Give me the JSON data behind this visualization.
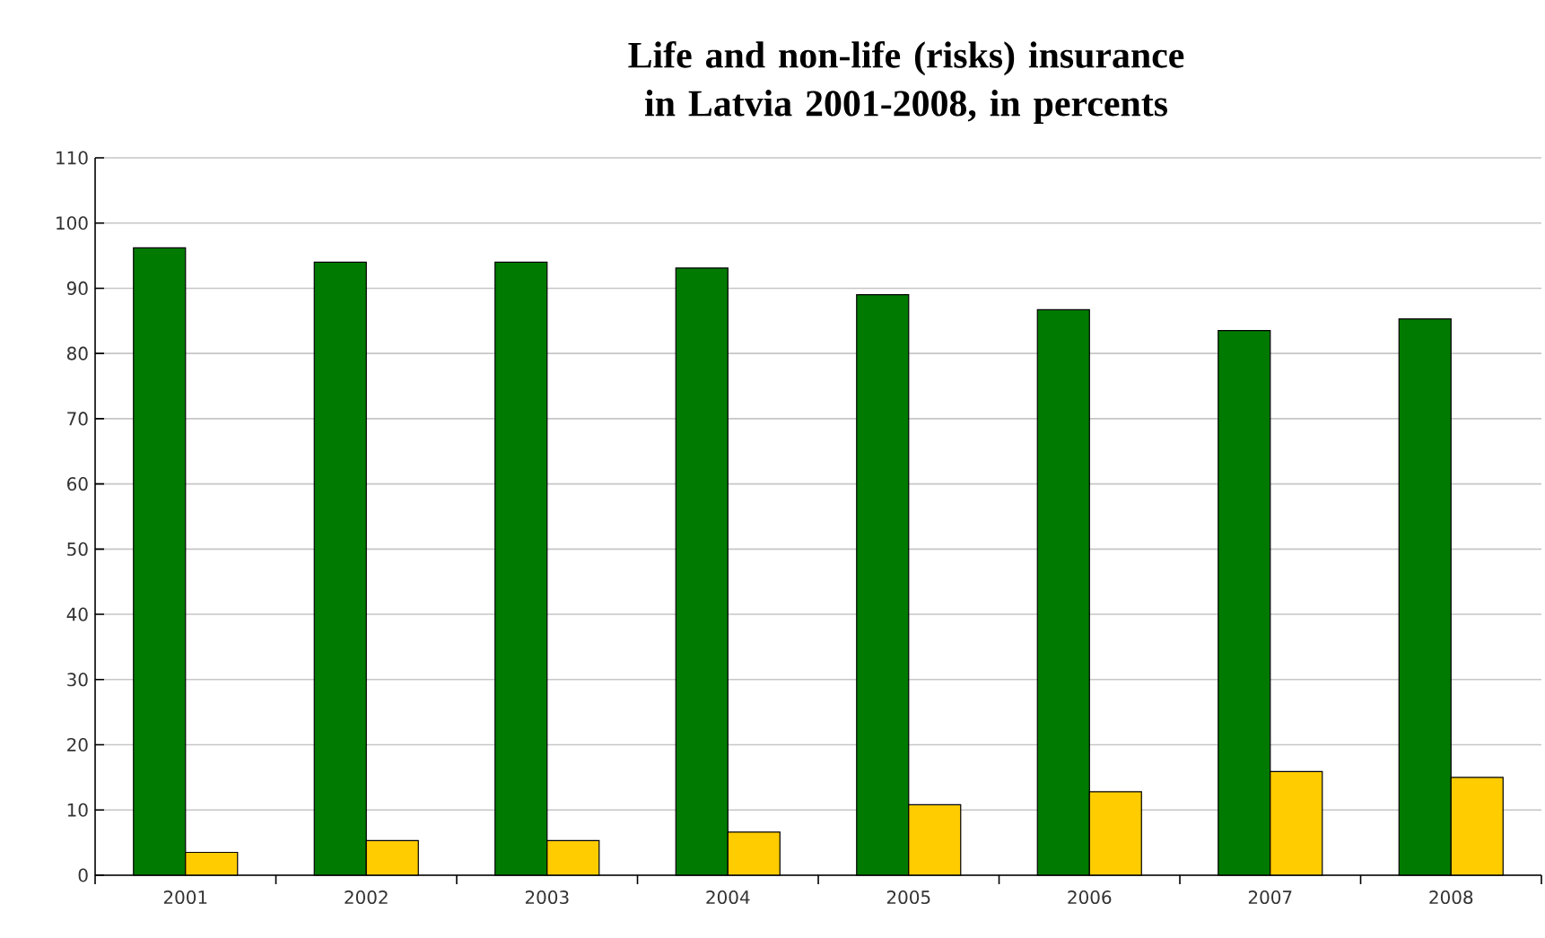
{
  "chart_data": {
    "type": "bar",
    "title": "Life and non-life (risks) insurance in Latvia 2001-2008, in percents",
    "categories": [
      "2001",
      "2002",
      "2003",
      "2004",
      "2005",
      "2006",
      "2007",
      "2008"
    ],
    "series": [
      {
        "color": "#007a00",
        "values": [
          96.2,
          94.0,
          94.0,
          93.1,
          89.0,
          86.7,
          83.5,
          85.3
        ]
      },
      {
        "color": "#ffcc00",
        "values": [
          3.5,
          5.3,
          5.3,
          6.6,
          10.8,
          12.8,
          15.9,
          15.0
        ]
      }
    ],
    "ylim": [
      0,
      110
    ],
    "yticks": [
      0,
      10,
      20,
      30,
      40,
      50,
      60,
      70,
      80,
      90,
      100,
      110
    ],
    "grid": "y",
    "legend": false
  }
}
